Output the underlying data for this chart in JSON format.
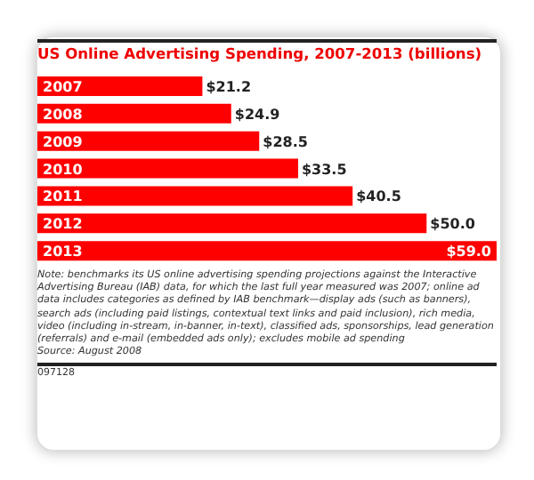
{
  "chart_data": {
    "type": "bar",
    "orientation": "horizontal",
    "title": "US Online Advertising Spending, 2007-2013 (billions)",
    "categories": [
      "2007",
      "2008",
      "2009",
      "2010",
      "2011",
      "2012",
      "2013"
    ],
    "values": [
      21.2,
      24.9,
      28.5,
      33.5,
      40.5,
      50.0,
      59.0
    ],
    "value_labels": [
      "$21.2",
      "$24.9",
      "$28.5",
      "$33.5",
      "$40.5",
      "$50.0",
      "$59.0"
    ],
    "color": "#ff0000",
    "annotations": [
      "Note: benchmarks its US online advertising spending projections against the Interactive Advertising Bureau (IAB) data, for which the last full year measured was 2007; online ad data includes categories as defined by IAB benchmark—display ads (such as banners), search ads (including paid listings, contextual text links and paid inclusion), rich media, video (including in-stream, in-banner, in-text), classified ads, sponsorships, lead generation (referrals) and e-mail (embedded ads only); excludes mobile ad spending",
      "Source: August 2008",
      "097128"
    ]
  }
}
